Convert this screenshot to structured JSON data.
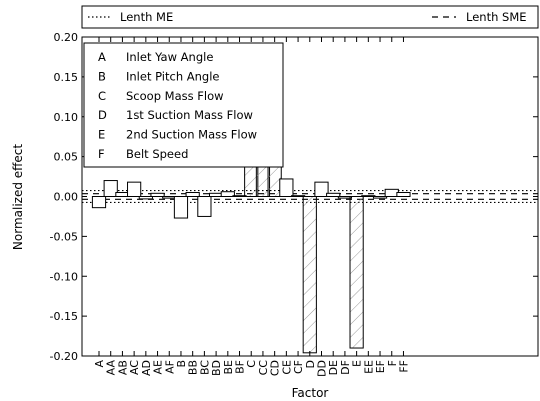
{
  "chart_data": {
    "type": "bar",
    "xlabel": "Factor",
    "ylabel": "Normalized effect",
    "ylim": [
      -0.2,
      0.2
    ],
    "yticks": [
      "0.20",
      "0.15",
      "0.10",
      "0.05",
      "0.00",
      "-0.05",
      "-0.10",
      "-0.15",
      "-0.20"
    ],
    "ytick_values": [
      0.2,
      0.15,
      0.1,
      0.05,
      0.0,
      -0.05,
      -0.1,
      -0.15,
      -0.2
    ],
    "categories": [
      "A",
      "AA",
      "AB",
      "AC",
      "AD",
      "AE",
      "AF",
      "B",
      "BB",
      "BC",
      "BD",
      "BE",
      "BF",
      "C",
      "CC",
      "CD",
      "CE",
      "CF",
      "D",
      "DD",
      "DE",
      "DF",
      "E",
      "EE",
      "EF",
      "F",
      "FF"
    ],
    "values": [
      -0.014,
      0.02,
      0.005,
      0.018,
      -0.003,
      0.004,
      -0.002,
      -0.027,
      0.005,
      -0.025,
      0.004,
      0.006,
      0.001,
      0.167,
      0.097,
      0.047,
      0.022,
      0.001,
      -0.196,
      0.018,
      0.004,
      -0.002,
      -0.19,
      0.001,
      -0.002,
      0.009,
      0.005
    ],
    "hatched": [
      "C",
      "CC",
      "CD",
      "D",
      "E"
    ],
    "reference_lines": [
      {
        "name": "Lenth ME",
        "value": 0.0075,
        "style": "dotted"
      },
      {
        "name": "Lenth SME",
        "value": 0.0035,
        "style": "dashed"
      }
    ],
    "legend_top": [
      {
        "label": "Lenth ME",
        "style": "dotted"
      },
      {
        "label": "Lenth SME",
        "style": "dashed"
      }
    ],
    "factor_legend": [
      {
        "key": "A",
        "label": "Inlet Yaw Angle"
      },
      {
        "key": "B",
        "label": "Inlet Pitch Angle"
      },
      {
        "key": "C",
        "label": "Scoop Mass Flow"
      },
      {
        "key": "D",
        "label": "1st Suction Mass Flow"
      },
      {
        "key": "E",
        "label": "2nd Suction Mass Flow"
      },
      {
        "key": "F",
        "label": "Belt Speed"
      }
    ],
    "grid": false,
    "factor_legend_placement": "top-left",
    "line_legend_placement": "top"
  }
}
